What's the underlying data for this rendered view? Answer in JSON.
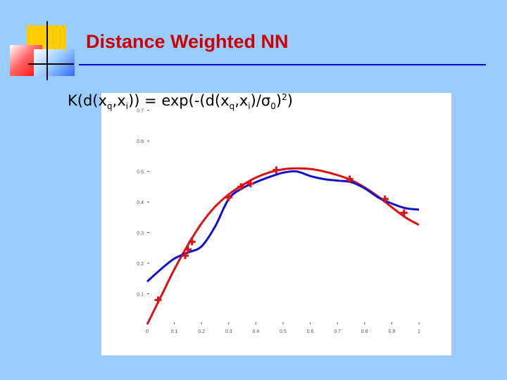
{
  "title": "Distance Weighted NN",
  "formula": {
    "pre": "K(d(x",
    "sub_q": "q",
    "comma1": ",x",
    "sub_i": "i",
    "mid": ")) = exp(-(d(x",
    "sub_q2": "q",
    "comma2": ",x",
    "sub_i2": "i",
    "slash_sigma": ")/σ",
    "sub_0": "0",
    "close": ")",
    "sup_2": "2",
    "end": ")"
  },
  "chart_data": {
    "type": "line",
    "xlim": [
      0,
      1
    ],
    "ylim": [
      0,
      0.72
    ],
    "xticks": [
      0,
      0.1,
      0.2,
      0.3,
      0.4,
      0.5,
      0.6,
      0.7,
      0.8,
      0.9,
      1
    ],
    "yticks": [
      0.1,
      0.2,
      0.3,
      0.4,
      0.5,
      0.6,
      0.7
    ],
    "series": [
      {
        "color": "#dd1111",
        "x": [
          0,
          0.05,
          0.1,
          0.15,
          0.2,
          0.25,
          0.3,
          0.35,
          0.4,
          0.45,
          0.5,
          0.55,
          0.6,
          0.65,
          0.7,
          0.75,
          0.8,
          0.85,
          0.9,
          0.95,
          1
        ],
        "y": [
          0.0,
          0.09,
          0.18,
          0.26,
          0.33,
          0.385,
          0.425,
          0.455,
          0.48,
          0.497,
          0.507,
          0.51,
          0.508,
          0.5,
          0.488,
          0.472,
          0.448,
          0.418,
          0.383,
          0.35,
          0.325
        ]
      },
      {
        "color": "#1111cc",
        "x": [
          0,
          0.05,
          0.1,
          0.15,
          0.2,
          0.25,
          0.3,
          0.35,
          0.4,
          0.45,
          0.5,
          0.55,
          0.6,
          0.65,
          0.7,
          0.75,
          0.8,
          0.85,
          0.9,
          0.95,
          1
        ],
        "y": [
          0.14,
          0.18,
          0.215,
          0.235,
          0.255,
          0.32,
          0.41,
          0.445,
          0.465,
          0.482,
          0.496,
          0.5,
          0.485,
          0.475,
          0.47,
          0.465,
          0.445,
          0.415,
          0.395,
          0.38,
          0.375
        ]
      }
    ],
    "points": {
      "color": "#dd1111",
      "x": [
        0.04,
        0.14,
        0.15,
        0.165,
        0.3,
        0.345,
        0.38,
        0.475,
        0.745,
        0.875,
        0.945
      ],
      "y": [
        0.08,
        0.225,
        0.245,
        0.27,
        0.415,
        0.45,
        0.46,
        0.505,
        0.475,
        0.41,
        0.365
      ]
    }
  }
}
